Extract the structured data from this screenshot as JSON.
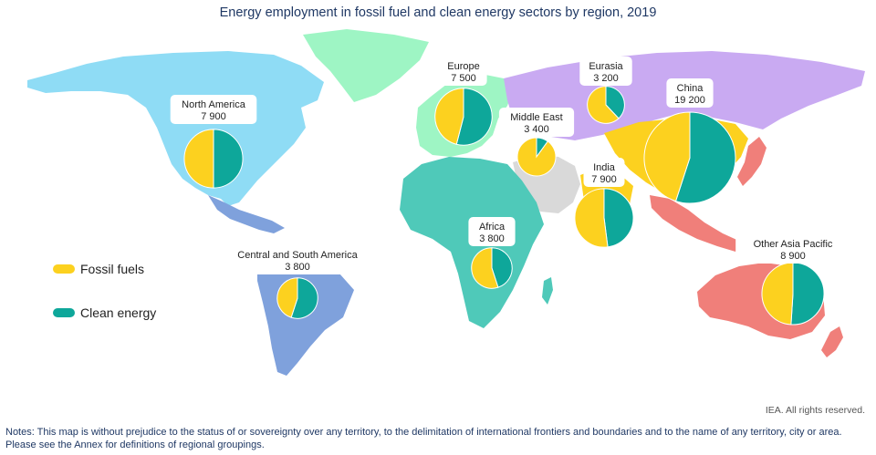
{
  "title": "Energy employment in fossil fuel and clean energy sectors by region, 2019",
  "colors": {
    "fossil": "#fcd11f",
    "clean": "#0ea79a",
    "north_america": "#8fdcf5",
    "greenland": "#9ef5c4",
    "central_south_america": "#7fa1dc",
    "europe": "#9ef5c4",
    "eurasia": "#c9aaf2",
    "middle_east": "#d9d9d9",
    "africa": "#4fc9b9",
    "china": "#fcd11f",
    "india": "#fcd11f",
    "other_asia_pacific": "#f07f7a"
  },
  "legend": {
    "fossil": "Fossil fuels",
    "clean": "Clean energy"
  },
  "regions": [
    {
      "key": "north_america",
      "name": "North America",
      "value": "7 900",
      "total": 7900,
      "fossil_share": 0.5
    },
    {
      "key": "central_south_america",
      "name": "Central and South America",
      "value": "3 800",
      "total": 3800,
      "fossil_share": 0.45
    },
    {
      "key": "europe",
      "name": "Europe",
      "value": "7 500",
      "total": 7500,
      "fossil_share": 0.46
    },
    {
      "key": "eurasia",
      "name": "Eurasia",
      "value": "3 200",
      "total": 3200,
      "fossil_share": 0.62
    },
    {
      "key": "middle_east",
      "name": "Middle East",
      "value": "3 400",
      "total": 3400,
      "fossil_share": 0.9
    },
    {
      "key": "china",
      "name": "China",
      "value": "19 200",
      "total": 19200,
      "fossil_share": 0.45
    },
    {
      "key": "india",
      "name": "India",
      "value": "7 900",
      "total": 7900,
      "fossil_share": 0.52
    },
    {
      "key": "africa",
      "name": "Africa",
      "value": "3 800",
      "total": 3800,
      "fossil_share": 0.55
    },
    {
      "key": "other_asia_pacific",
      "name": "Other Asia Pacific",
      "value": "8 900",
      "total": 8900,
      "fossil_share": 0.49
    }
  ],
  "rights": "IEA. All rights reserved.",
  "notes": "Notes: This map is without prejudice to the status of or sovereignty over any territory, to the delimitation of international frontiers and boundaries and to the name of any territory, city or area. Please see the Annex for definitions of regional groupings."
}
